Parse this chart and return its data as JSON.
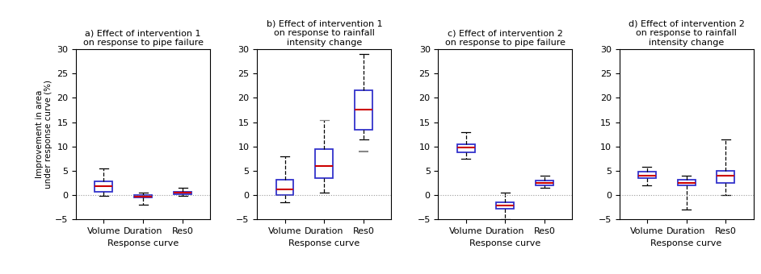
{
  "titles": [
    "a) Effect of intervention 1\non response to pipe failure",
    "b) Effect of intervention 1\non response to rainfall\nintensity change",
    "c) Effect of intervention 2\non response to pipe failure",
    "d) Effect of intervention 2\non response to rainfall\nintensity change"
  ],
  "xlabel": "Response curve",
  "ylabel": "Improvement in area\nunder response curve (%)",
  "categories": [
    "Volume",
    "Duration",
    "Res0"
  ],
  "ylim": [
    -5,
    30
  ],
  "yticks": [
    -5,
    0,
    5,
    10,
    15,
    20,
    25,
    30
  ],
  "box_color": "#3333cc",
  "median_color": "#cc0000",
  "whisker_color": "#000000",
  "cap_color_normal": "#000000",
  "cap_color_gray": "#888888",
  "flier_color": "#888888",
  "background_color": "#ffffff",
  "panels": [
    {
      "name": "a",
      "boxes": [
        {
          "whislo": -0.2,
          "q1": 0.7,
          "med": 1.8,
          "q3": 2.8,
          "whishi": 5.5,
          "fliers": [],
          "cap_hi_gray": false,
          "cap_lo_gray": false
        },
        {
          "whislo": -2.0,
          "q1": -0.5,
          "med": -0.3,
          "q3": -0.1,
          "whishi": 0.4,
          "fliers": [],
          "cap_hi_gray": false,
          "cap_lo_gray": false
        },
        {
          "whislo": -0.2,
          "q1": 0.1,
          "med": 0.4,
          "q3": 0.7,
          "whishi": 1.5,
          "fliers": [],
          "cap_hi_gray": false,
          "cap_lo_gray": false
        }
      ]
    },
    {
      "name": "b",
      "boxes": [
        {
          "whislo": -1.5,
          "q1": 0.0,
          "med": 1.2,
          "q3": 3.2,
          "whishi": 8.0,
          "fliers": [],
          "cap_hi_gray": false,
          "cap_lo_gray": false
        },
        {
          "whislo": 0.5,
          "q1": 3.5,
          "med": 6.0,
          "q3": 9.5,
          "whishi": 15.5,
          "fliers": [],
          "cap_hi_gray": true,
          "cap_lo_gray": false
        },
        {
          "whislo": 11.5,
          "q1": 13.5,
          "med": 17.5,
          "q3": 21.5,
          "whishi": 29.0,
          "fliers": [
            9.0
          ],
          "cap_hi_gray": false,
          "cap_lo_gray": false
        }
      ]
    },
    {
      "name": "c",
      "boxes": [
        {
          "whislo": 7.5,
          "q1": 8.8,
          "med": 9.8,
          "q3": 10.5,
          "whishi": 13.0,
          "fliers": [],
          "cap_hi_gray": false,
          "cap_lo_gray": false
        },
        {
          "whislo": -5.0,
          "q1": -2.8,
          "med": -2.2,
          "q3": -1.5,
          "whishi": 0.5,
          "fliers": [],
          "cap_hi_gray": false,
          "cap_lo_gray": false
        },
        {
          "whislo": 1.5,
          "q1": 2.0,
          "med": 2.5,
          "q3": 3.0,
          "whishi": 4.0,
          "fliers": [],
          "cap_hi_gray": false,
          "cap_lo_gray": false
        }
      ]
    },
    {
      "name": "d",
      "boxes": [
        {
          "whislo": 2.0,
          "q1": 3.5,
          "med": 4.0,
          "q3": 4.8,
          "whishi": 5.8,
          "fliers": [],
          "cap_hi_gray": false,
          "cap_lo_gray": false
        },
        {
          "whislo": -3.0,
          "q1": 2.0,
          "med": 2.5,
          "q3": 3.2,
          "whishi": 4.0,
          "fliers": [],
          "cap_hi_gray": false,
          "cap_lo_gray": false
        },
        {
          "whislo": 0.0,
          "q1": 2.5,
          "med": 4.0,
          "q3": 5.0,
          "whishi": 11.5,
          "fliers": [],
          "cap_hi_gray": false,
          "cap_lo_gray": false
        }
      ]
    }
  ]
}
